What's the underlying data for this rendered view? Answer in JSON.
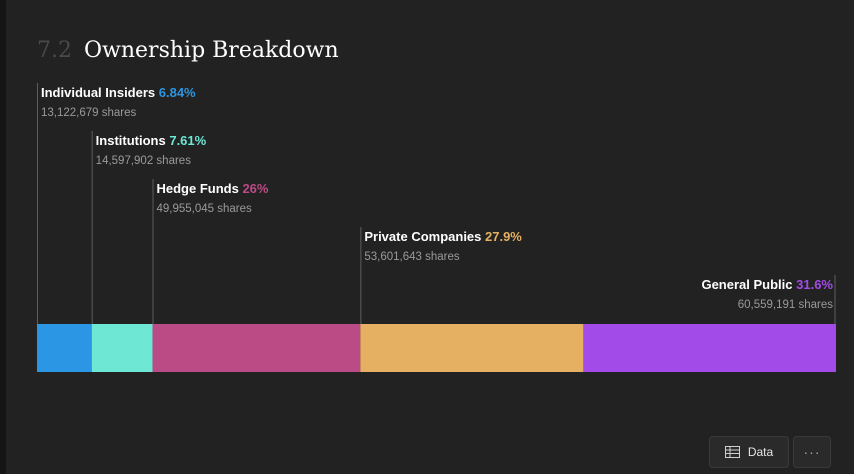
{
  "section": {
    "number": "7.2",
    "title": "Ownership Breakdown"
  },
  "chart_data": {
    "type": "stacked-bar",
    "title": "Ownership Breakdown",
    "orientation": "horizontal",
    "segments": [
      {
        "name": "Individual Insiders",
        "percent": 6.84,
        "percent_label": "6.84%",
        "shares": "13,122,679 shares",
        "color": "#2b96e3"
      },
      {
        "name": "Institutions",
        "percent": 7.61,
        "percent_label": "7.61%",
        "shares": "14,597,902 shares",
        "color": "#6ee7d5"
      },
      {
        "name": "Hedge Funds",
        "percent": 26,
        "percent_label": "26%",
        "shares": "49,955,045 shares",
        "color": "#bb4b85"
      },
      {
        "name": "Private Companies",
        "percent": 27.9,
        "percent_label": "27.9%",
        "shares": "53,601,643 shares",
        "color": "#e6b062"
      },
      {
        "name": "General Public",
        "percent": 31.6,
        "percent_label": "31.6%",
        "shares": "60,559,191 shares",
        "color": "#a34be8"
      }
    ]
  },
  "buttons": {
    "data_label": "Data",
    "more_label": "···"
  }
}
